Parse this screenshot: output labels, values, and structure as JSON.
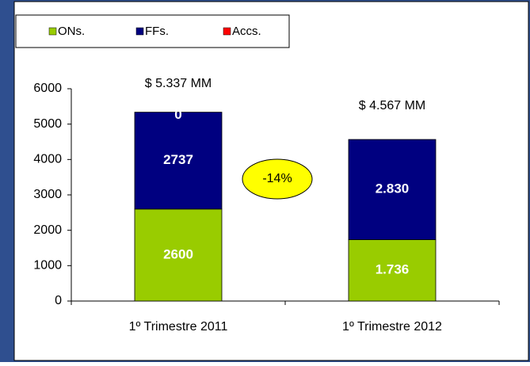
{
  "chart_data": {
    "type": "stacked_bar",
    "categories": [
      "1º Trimestre 2011",
      "1º Trimestre 2012"
    ],
    "series": [
      {
        "name": "ONs.",
        "color": "#99cc00",
        "values": [
          2600,
          1736
        ],
        "value_labels": [
          "2600",
          "1.736"
        ]
      },
      {
        "name": "FFs.",
        "color": "#000080",
        "values": [
          2737,
          2830
        ],
        "value_labels": [
          "2737",
          "2.830"
        ]
      },
      {
        "name": "Accs.",
        "color": "#ff0000",
        "values": [
          0,
          0
        ],
        "value_labels": [
          "0",
          null
        ]
      }
    ],
    "annotations": [
      "$ 5.337 MM",
      "$ 4.567 MM",
      "-14%"
    ],
    "ylim": [
      0,
      6000
    ],
    "yticks": [
      0,
      1000,
      2000,
      3000,
      4000,
      5000,
      6000
    ]
  }
}
